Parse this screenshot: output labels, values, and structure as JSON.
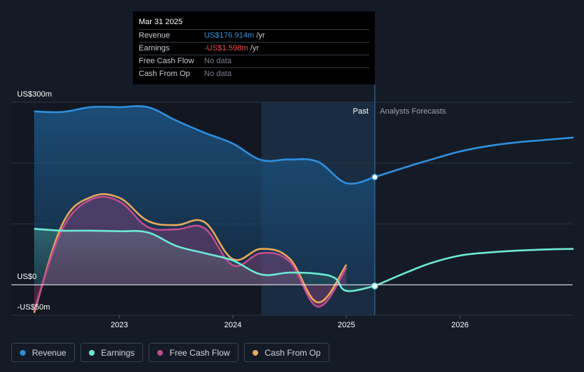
{
  "tooltip": {
    "date": "Mar 31 2025",
    "rows": [
      {
        "label": "Revenue",
        "value": "US$176.914m",
        "unit": "/yr"
      },
      {
        "label": "Earnings",
        "value": "-US$1.598m",
        "unit": "/yr"
      },
      {
        "label": "Free Cash Flow",
        "value": "No data",
        "unit": ""
      },
      {
        "label": "Cash From Op",
        "value": "No data",
        "unit": ""
      }
    ]
  },
  "legend": [
    {
      "label": "Revenue",
      "color": "#2f8fde"
    },
    {
      "label": "Earnings",
      "color": "#6ee8d4"
    },
    {
      "label": "Free Cash Flow",
      "color": "#c04b8f"
    },
    {
      "label": "Cash From Op",
      "color": "#e9a85c"
    }
  ],
  "chart_data": {
    "type": "line",
    "title": "",
    "y_top_label": "US$300m",
    "y_zero_label": "US$0",
    "y_bottom_label": "-US$50m",
    "ylim": [
      -50,
      300
    ],
    "region_labels": {
      "past": "Past",
      "forecast": "Analysts Forecasts"
    },
    "x_ticks": [
      {
        "label": "2023",
        "x": 2023.0
      },
      {
        "label": "2024",
        "x": 2024.0
      },
      {
        "label": "2025",
        "x": 2025.0
      },
      {
        "label": "2026",
        "x": 2026.0
      }
    ],
    "highlight_range": [
      2024.25,
      2025.25
    ],
    "marker_x": 2025.25,
    "series": [
      {
        "name": "Revenue",
        "color": "#2f8fde",
        "fill": true,
        "past": [
          [
            2022.25,
            285
          ],
          [
            2022.5,
            284
          ],
          [
            2022.75,
            292
          ],
          [
            2023.0,
            292
          ],
          [
            2023.25,
            292
          ],
          [
            2023.5,
            270
          ],
          [
            2023.75,
            250
          ],
          [
            2024.0,
            232
          ],
          [
            2024.25,
            205
          ],
          [
            2024.5,
            206
          ],
          [
            2024.75,
            202
          ],
          [
            2025.0,
            167
          ],
          [
            2025.25,
            177
          ]
        ],
        "forecast": [
          [
            2025.25,
            177
          ],
          [
            2025.5,
            192
          ],
          [
            2025.75,
            206
          ],
          [
            2026.0,
            219
          ],
          [
            2026.25,
            228
          ],
          [
            2026.5,
            234
          ],
          [
            2026.75,
            238
          ],
          [
            2027.0,
            242
          ]
        ]
      },
      {
        "name": "Earnings",
        "color": "#6ee8d4",
        "fill": true,
        "past": [
          [
            2022.25,
            92
          ],
          [
            2022.5,
            89
          ],
          [
            2022.75,
            89
          ],
          [
            2023.0,
            88
          ],
          [
            2023.25,
            86
          ],
          [
            2023.5,
            64
          ],
          [
            2023.75,
            52
          ],
          [
            2024.0,
            40
          ],
          [
            2024.25,
            17
          ],
          [
            2024.5,
            20
          ],
          [
            2024.75,
            18
          ],
          [
            2024.9,
            11
          ],
          [
            2025.0,
            -10
          ],
          [
            2025.25,
            -2
          ]
        ],
        "forecast": [
          [
            2025.25,
            -2
          ],
          [
            2025.5,
            18
          ],
          [
            2025.75,
            36
          ],
          [
            2026.0,
            48
          ],
          [
            2026.25,
            53
          ],
          [
            2026.5,
            56
          ],
          [
            2026.75,
            58
          ],
          [
            2027.0,
            59
          ]
        ]
      },
      {
        "name": "Free Cash Flow",
        "color": "#c04b8f",
        "fill": true,
        "past": [
          [
            2022.25,
            -42
          ],
          [
            2022.5,
            92
          ],
          [
            2022.75,
            140
          ],
          [
            2023.0,
            137
          ],
          [
            2023.25,
            95
          ],
          [
            2023.5,
            91
          ],
          [
            2023.75,
            93
          ],
          [
            2024.0,
            32
          ],
          [
            2024.25,
            52
          ],
          [
            2024.5,
            38
          ],
          [
            2024.75,
            -36
          ],
          [
            2025.0,
            28
          ]
        ],
        "forecast": []
      },
      {
        "name": "Cash From Op",
        "color": "#e9a85c",
        "fill": false,
        "past": [
          [
            2022.25,
            -46
          ],
          [
            2022.5,
            100
          ],
          [
            2022.75,
            144
          ],
          [
            2023.0,
            143
          ],
          [
            2023.25,
            105
          ],
          [
            2023.5,
            98
          ],
          [
            2023.75,
            103
          ],
          [
            2024.0,
            42
          ],
          [
            2024.25,
            59
          ],
          [
            2024.5,
            43
          ],
          [
            2024.75,
            -29
          ],
          [
            2025.0,
            33
          ]
        ],
        "forecast": []
      }
    ]
  }
}
